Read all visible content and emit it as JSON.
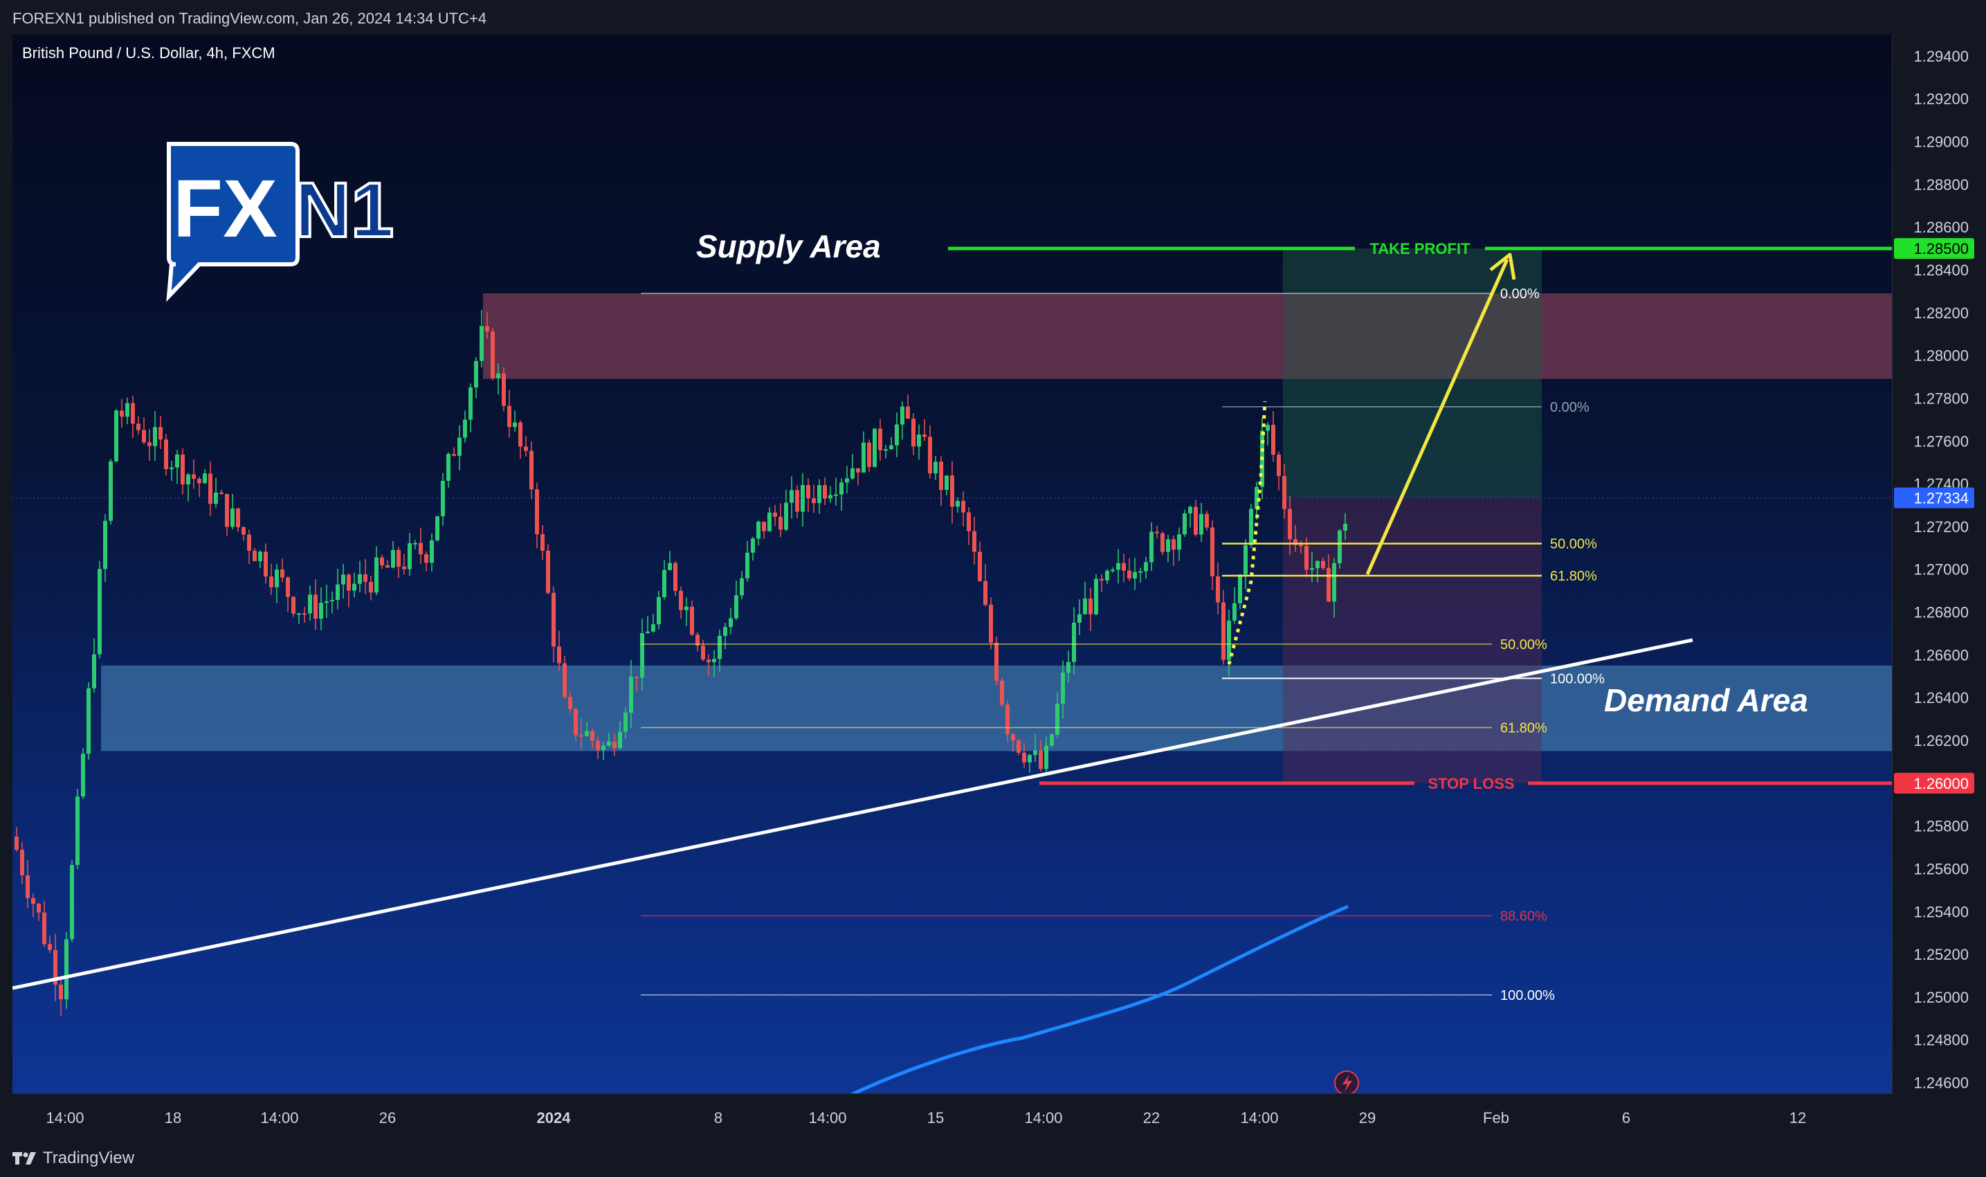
{
  "header": {
    "published": "FOREXN1 published on TradingView.com, Jan 26, 2024 14:34 UTC+4"
  },
  "symbol": {
    "title": "British Pound / U.S. Dollar, 4h, FXCM"
  },
  "logo": {
    "fx": "FX",
    "n1": "N1"
  },
  "labels": {
    "supply": "Supply Area",
    "demand": "Demand Area",
    "take_profit": "TAKE PROFIT",
    "stop_loss": "STOP LOSS"
  },
  "price_axis": {
    "ticks": [
      "1.29400",
      "1.29200",
      "1.29000",
      "1.28800",
      "1.28600",
      "1.28400",
      "1.28200",
      "1.28000",
      "1.27800",
      "1.27600",
      "1.27400",
      "1.27200",
      "1.27000",
      "1.26800",
      "1.26600",
      "1.26400",
      "1.26200",
      "1.25800",
      "1.25600",
      "1.25400",
      "1.25200",
      "1.25000",
      "1.24800",
      "1.24600"
    ],
    "take_profit_price": "1.28500",
    "current_price": "1.27334",
    "stop_loss_price": "1.26000"
  },
  "time_axis": {
    "ticks": [
      "14:00",
      "18",
      "14:00",
      "26",
      "2024",
      "8",
      "14:00",
      "15",
      "14:00",
      "22",
      "14:00",
      "29",
      "Feb",
      "6",
      "12"
    ]
  },
  "fib_big": {
    "levels": [
      "0.00%",
      "50.00%",
      "61.80%",
      "88.60%",
      "100.00%"
    ]
  },
  "fib_small": {
    "levels": [
      "0.00%",
      "50.00%",
      "61.80%",
      "100.00%"
    ]
  },
  "footer": {
    "brand": "TradingView"
  },
  "colors": {
    "bull": "#26a69a",
    "bull_bright": "#2ecc71",
    "bear": "#ef5350",
    "take_profit": "#22e02a",
    "stop_loss": "#f23645",
    "current": "#2962ff",
    "fib": "#f5e642",
    "fib_red": "#e0314b",
    "supply": "#7a3a55",
    "demand": "#4a86b8",
    "ma": "#1e88ff"
  },
  "chart_data": {
    "type": "candlestick",
    "title": "British Pound / U.S. Dollar, 4h, FXCM",
    "ylim": [
      1.2455,
      1.295
    ],
    "horizontal_lines": [
      {
        "label": "TAKE PROFIT",
        "price": 1.285
      },
      {
        "label": "STOP LOSS",
        "price": 1.26
      }
    ],
    "zones": [
      {
        "label": "Supply Area",
        "from": 1.2789,
        "to": 1.2829
      },
      {
        "label": "Demand Area",
        "from": 1.2615,
        "to": 1.2655
      }
    ],
    "current_price": 1.27334,
    "fib_big": [
      {
        "level": "0.00%",
        "price": 1.2829
      },
      {
        "level": "50.00%",
        "price": 1.2665
      },
      {
        "level": "61.80%",
        "price": 1.2626
      },
      {
        "level": "88.60%",
        "price": 1.2538
      },
      {
        "level": "100.00%",
        "price": 1.2501
      }
    ],
    "fib_small": [
      {
        "level": "0.00%",
        "price": 1.2776
      },
      {
        "level": "50.00%",
        "price": 1.2712
      },
      {
        "level": "61.80%",
        "price": 1.2697
      },
      {
        "level": "100.00%",
        "price": 1.2649
      }
    ]
  }
}
